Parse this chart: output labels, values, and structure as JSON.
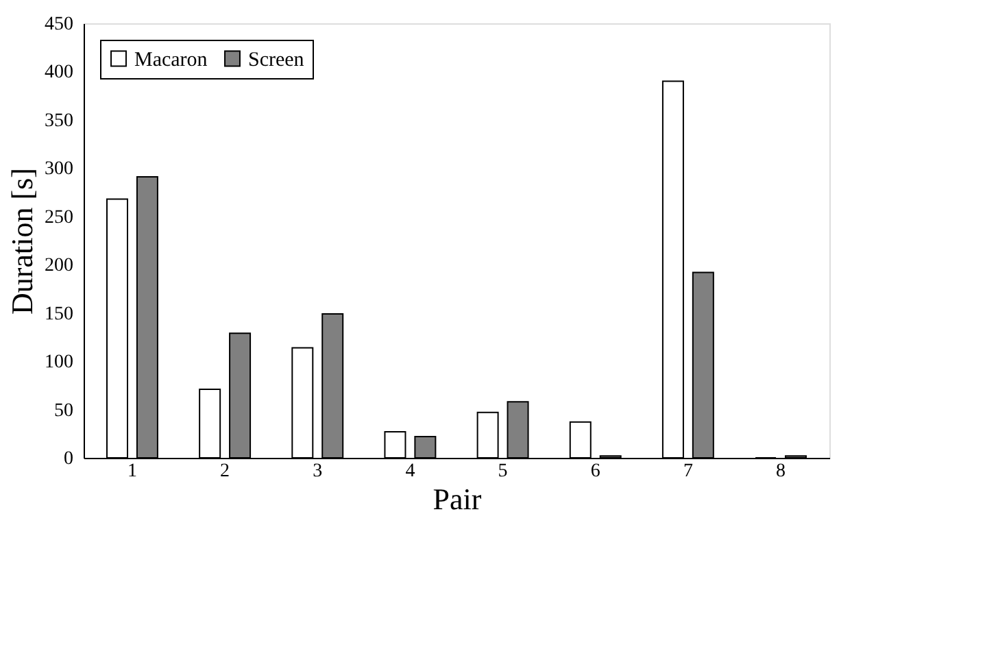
{
  "chart_data": {
    "type": "bar",
    "xlabel": "Pair",
    "ylabel": "Duration [s]",
    "categories": [
      "1",
      "2",
      "3",
      "4",
      "5",
      "6",
      "7",
      "8"
    ],
    "series": [
      {
        "name": "Macaron",
        "color": "#ffffff",
        "values": [
          268,
          71,
          114,
          27,
          47,
          37,
          390,
          0
        ]
      },
      {
        "name": "Screen",
        "color": "#808080",
        "values": [
          291,
          129,
          149,
          22,
          58,
          2,
          192,
          2
        ]
      }
    ],
    "ylim": [
      0,
      450
    ],
    "yticks": [
      0,
      50,
      100,
      150,
      200,
      250,
      300,
      350,
      400,
      450
    ],
    "grid": false,
    "legend": "top left"
  }
}
